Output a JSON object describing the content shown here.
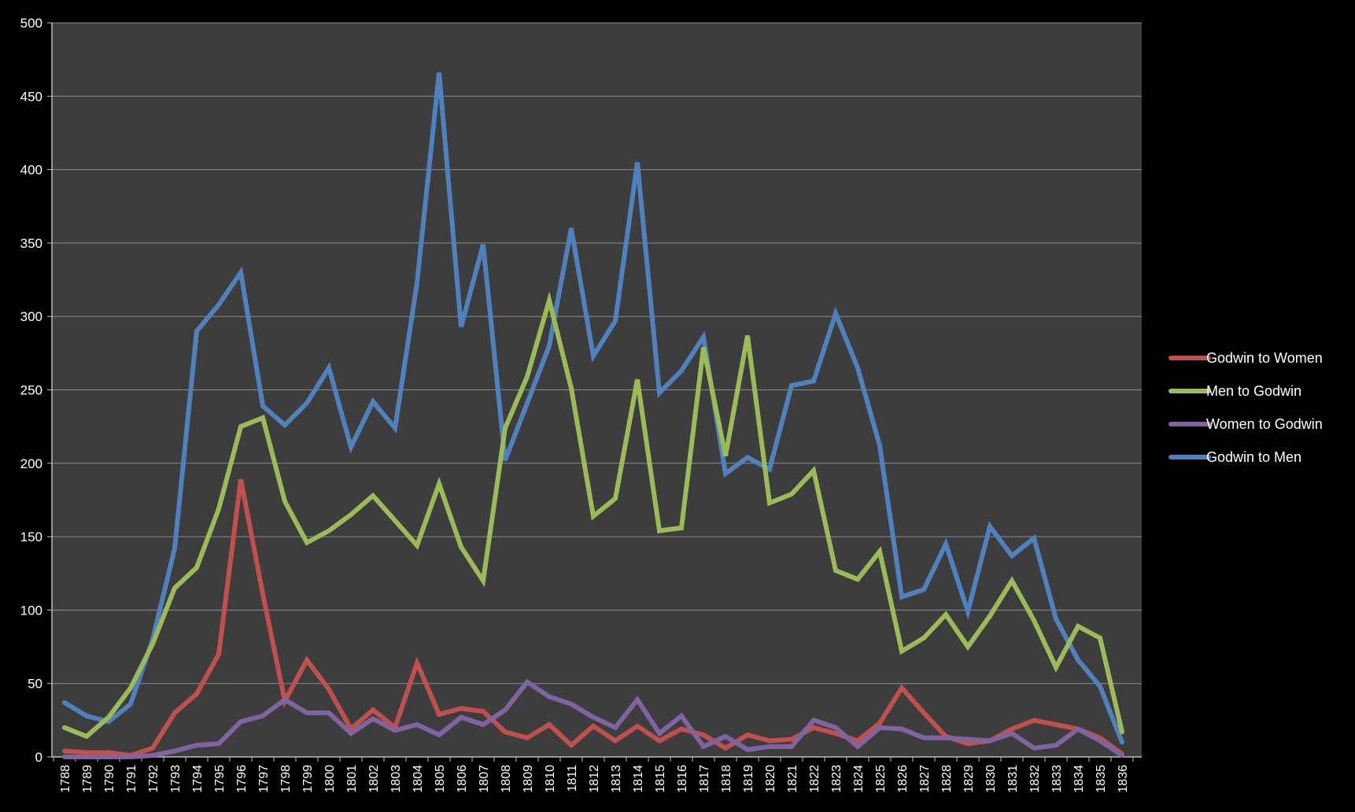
{
  "chart_data": {
    "type": "line",
    "title": "",
    "xlabel": "",
    "ylabel": "",
    "ylim": [
      0,
      500
    ],
    "yticks": [
      "0",
      "50",
      "100",
      "150",
      "200",
      "250",
      "300",
      "350",
      "400",
      "450",
      "500"
    ],
    "grid": "horizontal",
    "legend_position": "right",
    "background": "#3d3d3d",
    "categories": [
      "1788",
      "1789",
      "1790",
      "1791",
      "1792",
      "1793",
      "1794",
      "1795",
      "1796",
      "1797",
      "1798",
      "1799",
      "1800",
      "1801",
      "1802",
      "1803",
      "1804",
      "1805",
      "1806",
      "1807",
      "1808",
      "1809",
      "1810",
      "1811",
      "1812",
      "1813",
      "1814",
      "1815",
      "1816",
      "1817",
      "1818",
      "1819",
      "1820",
      "1821",
      "1822",
      "1823",
      "1824",
      "1825",
      "1826",
      "1827",
      "1828",
      "1829",
      "1830",
      "1831",
      "1832",
      "1833",
      "1834",
      "1835",
      "1836"
    ],
    "series": [
      {
        "name": "Godwin to Men",
        "color": "#4f81bd",
        "values": [
          37,
          28,
          24,
          36,
          80,
          142,
          290,
          308,
          330,
          239,
          226,
          241,
          265,
          211,
          242,
          224,
          323,
          466,
          293,
          349,
          202,
          241,
          280,
          360,
          273,
          297,
          405,
          248,
          263,
          286,
          193,
          204,
          196,
          253,
          256,
          302,
          265,
          212,
          109,
          114,
          145,
          99,
          157,
          137,
          149,
          94,
          66,
          48,
          10
        ]
      },
      {
        "name": "Men to Godwin",
        "color": "#9bbb59",
        "values": [
          20,
          14,
          27,
          47,
          77,
          115,
          129,
          169,
          225,
          231,
          174,
          146,
          154,
          165,
          178,
          161,
          144,
          186,
          143,
          120,
          224,
          259,
          311,
          251,
          164,
          176,
          257,
          154,
          156,
          279,
          205,
          287,
          173,
          179,
          195,
          127,
          121,
          140,
          72,
          81,
          97,
          75,
          96,
          120,
          93,
          61,
          89,
          81,
          17
        ]
      },
      {
        "name": "Godwin to Women",
        "color": "#c0504d",
        "values": [
          4,
          3,
          3,
          1,
          6,
          30,
          43,
          70,
          189,
          111,
          38,
          66,
          46,
          19,
          32,
          20,
          64,
          29,
          33,
          31,
          17,
          13,
          22,
          8,
          21,
          11,
          21,
          11,
          19,
          15,
          6,
          15,
          11,
          12,
          20,
          16,
          11,
          23,
          47,
          30,
          14,
          9,
          11,
          19,
          25,
          22,
          19,
          13,
          2
        ]
      },
      {
        "name": "Women to Godwin",
        "color": "#8064a2",
        "values": [
          0,
          0,
          0,
          0,
          1,
          4,
          8,
          9,
          24,
          28,
          39,
          30,
          30,
          16,
          26,
          18,
          22,
          15,
          27,
          22,
          32,
          51,
          41,
          36,
          27,
          20,
          39,
          16,
          28,
          7,
          14,
          5,
          7,
          7,
          25,
          20,
          7,
          20,
          19,
          13,
          13,
          12,
          11,
          16,
          6,
          8,
          19,
          11,
          1
        ]
      }
    ],
    "legend_order": [
      "Godwin to Women",
      "Men to Godwin",
      "Women to Godwin",
      "Godwin to Men"
    ]
  }
}
